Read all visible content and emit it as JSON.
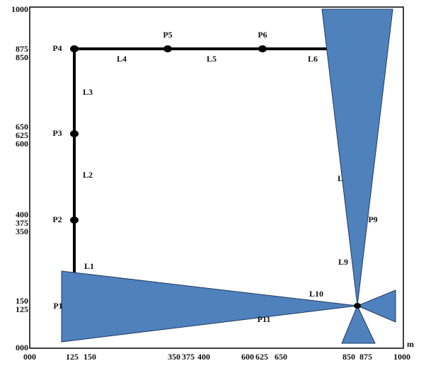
{
  "y_axis": {
    "labels": [
      "1000",
      "875",
      "850",
      "650",
      "625",
      "600",
      "400",
      "375",
      "350",
      "150",
      "125",
      "000"
    ]
  },
  "x_axis": {
    "labels": [
      "000",
      "125",
      "150",
      "350",
      "375",
      "400",
      "600",
      "625",
      "650",
      "850",
      "875",
      "1000"
    ],
    "unit": "m"
  },
  "points": [
    "P1",
    "P2",
    "P3",
    "P4",
    "P5",
    "P6",
    "P9",
    "P11"
  ],
  "lines": [
    "L1",
    "L2",
    "L3",
    "L4",
    "L5",
    "L6",
    "L",
    "L9",
    "L10"
  ]
}
